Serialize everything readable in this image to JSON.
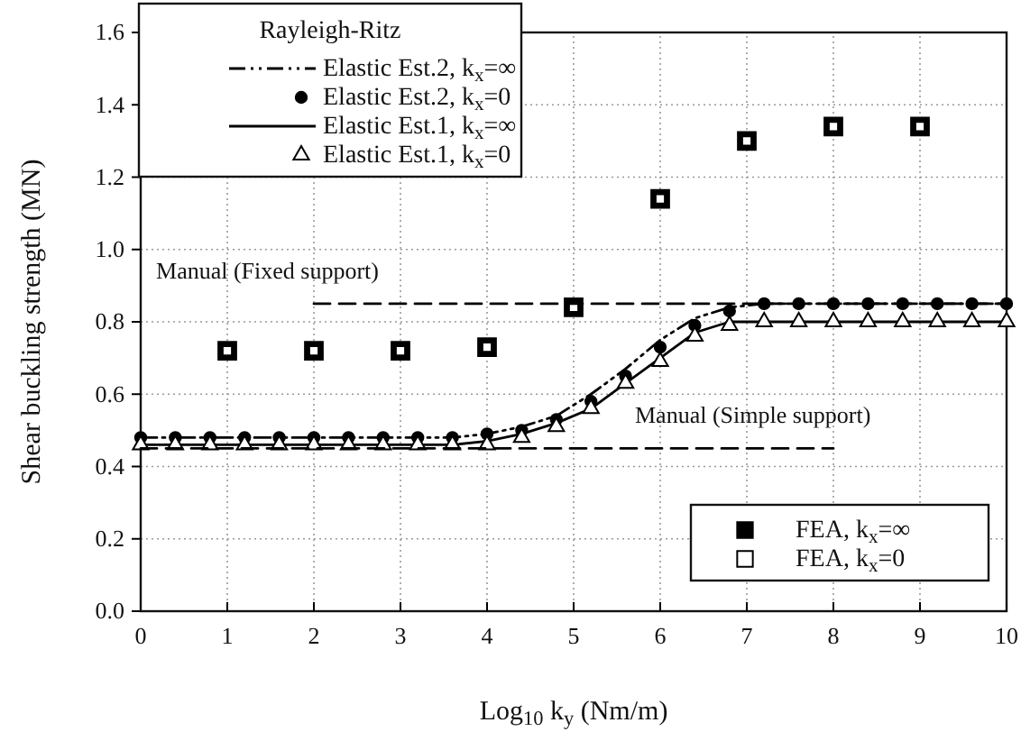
{
  "chart_data": {
    "type": "line",
    "xlabel": "Log$_{10}$ k$_{y}$ (Nm/m)",
    "ylabel": "Shear buckling strength (MN)",
    "legend_title": "Rayleigh-Ritz",
    "xlim": [
      0,
      10
    ],
    "xticks": [
      0,
      1,
      2,
      3,
      4,
      5,
      6,
      7,
      8,
      9,
      10
    ],
    "ylim": [
      0,
      1.6
    ],
    "yticks": [
      {
        "value": 0,
        "label": "0.0"
      },
      {
        "value": 0.2,
        "label": "0.2"
      },
      {
        "value": 0.4,
        "label": "0.4"
      },
      {
        "value": 0.6,
        "label": "0.6"
      },
      {
        "value": 0.8,
        "label": "0.8"
      },
      {
        "value": 1,
        "label": "1.0"
      },
      {
        "value": 1.2,
        "label": "1.2"
      },
      {
        "value": 1.4,
        "label": "1.4"
      },
      {
        "value": 1.6,
        "label": "1.6"
      }
    ],
    "grid": true,
    "legend": "top left",
    "x": [
      0,
      0.4,
      0.8,
      1.2,
      1.6,
      2,
      2.4,
      2.8,
      3.2,
      3.6,
      4,
      4.4,
      4.8,
      5.2,
      5.6,
      6,
      6.4,
      6.8,
      7.2,
      7.6,
      8,
      8.4,
      8.8,
      9.2,
      9.6,
      10
    ],
    "series": [
      {
        "name": "Elastic Est.2, k$_{x}$=∞",
        "color": "#000000",
        "marker": "none",
        "line_style": "dashed",
        "values": [
          0.48,
          0.48,
          0.48,
          0.48,
          0.48,
          0.48,
          0.48,
          0.48,
          0.48,
          0.48,
          0.49,
          0.51,
          0.54,
          0.6,
          0.67,
          0.75,
          0.81,
          0.84,
          0.85,
          0.85,
          0.85,
          0.85,
          0.85,
          0.85,
          0.85,
          0.85
        ]
      },
      {
        "name": "Elastic Est.2, k$_{x}$=0",
        "type": "scatter",
        "color": "#000000",
        "marker": "circle",
        "values": [
          0.48,
          0.48,
          0.48,
          0.48,
          0.48,
          0.48,
          0.48,
          0.48,
          0.48,
          0.48,
          0.49,
          0.5,
          0.53,
          0.58,
          0.65,
          0.73,
          0.79,
          0.83,
          0.85,
          0.85,
          0.85,
          0.85,
          0.85,
          0.85,
          0.85,
          0.85
        ]
      },
      {
        "name": "Elastic Est.1, k$_{x}$=∞",
        "color": "#000000",
        "marker": "none",
        "line_style": "solid",
        "values": [
          0.46,
          0.46,
          0.46,
          0.46,
          0.46,
          0.46,
          0.46,
          0.46,
          0.46,
          0.46,
          0.47,
          0.49,
          0.52,
          0.56,
          0.63,
          0.7,
          0.77,
          0.8,
          0.8,
          0.8,
          0.8,
          0.8,
          0.8,
          0.8,
          0.8,
          0.8
        ]
      },
      {
        "name": "Elastic Est.1, k$_{x}$=0",
        "type": "scatter",
        "color": "#ffffff",
        "marker": "triangle",
        "values": [
          0.46,
          0.46,
          0.46,
          0.46,
          0.46,
          0.46,
          0.46,
          0.46,
          0.46,
          0.46,
          0.46,
          0.48,
          0.51,
          0.56,
          0.63,
          0.69,
          0.76,
          0.79,
          0.8,
          0.8,
          0.8,
          0.8,
          0.8,
          0.8,
          0.8,
          0.8
        ]
      },
      {
        "name": "FEA, k$_{x}$=∞",
        "type": "scatter",
        "color": "#000000",
        "marker": "square",
        "x": [
          1,
          2,
          3,
          4,
          5,
          6,
          7,
          8,
          9
        ],
        "values": [
          0.72,
          0.72,
          0.72,
          0.73,
          0.84,
          1.14,
          1.3,
          1.34,
          1.34
        ]
      },
      {
        "name": "FEA, k$_{x}$=0",
        "type": "scatter",
        "color": "#ffffff",
        "marker": "square",
        "x": [
          1,
          2,
          3,
          4,
          5,
          6,
          7,
          8,
          9
        ],
        "values": [
          0.72,
          0.72,
          0.72,
          0.73,
          0.84,
          1.14,
          1.3,
          1.34,
          1.34
        ]
      },
      {
        "name": "Manual (Fixed support)",
        "color": "#000000",
        "marker": "none",
        "line_style": "dashed",
        "x": [
          2,
          10
        ],
        "values": [
          0.85,
          0.85
        ]
      },
      {
        "name": "Manual (Simple support)",
        "color": "#000000",
        "marker": "none",
        "line_style": "dashed",
        "x": [
          0,
          8
        ],
        "values": [
          0.45,
          0.45
        ]
      }
    ]
  }
}
